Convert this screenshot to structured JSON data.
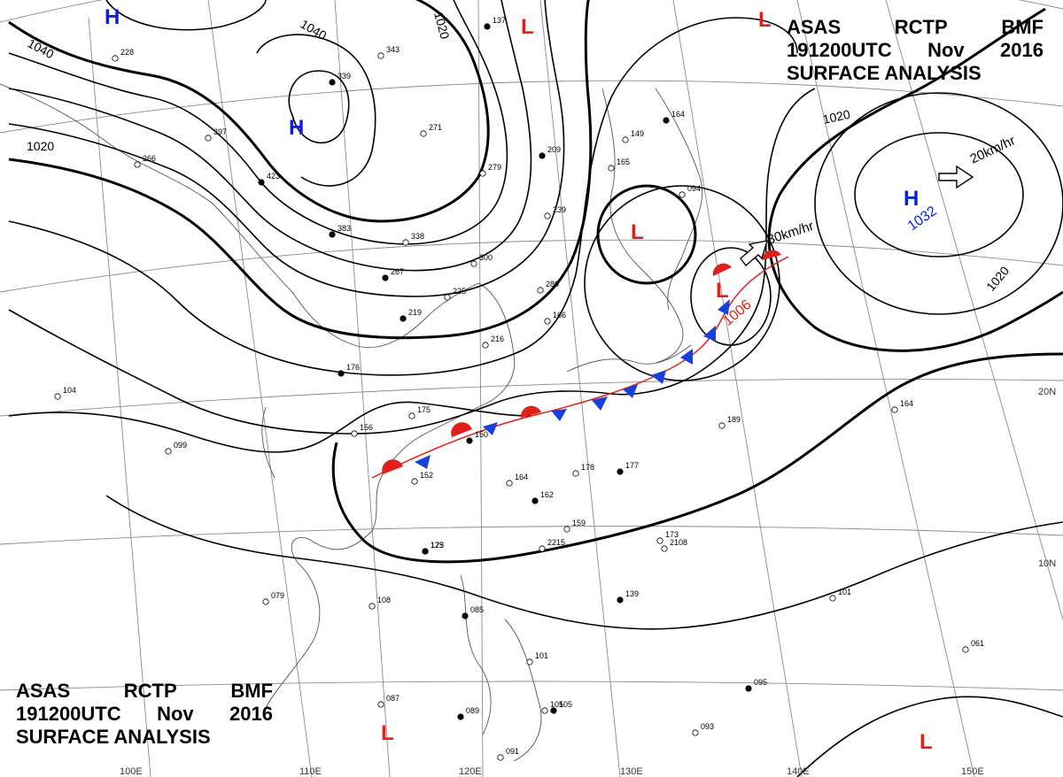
{
  "header": {
    "line1_parts": [
      "ASAS",
      "RCTP",
      "BMF"
    ],
    "line2_parts": [
      "191200UTC",
      "Nov",
      "2016"
    ],
    "line3": "SURFACE ANALYSIS"
  },
  "isobar_labels": [
    "1040",
    "1040",
    "1020",
    "1020",
    "1020",
    "1020"
  ],
  "pressure_centers": [
    {
      "type": "H",
      "value": ""
    },
    {
      "type": "H",
      "value": ""
    },
    {
      "type": "H",
      "value": "1032"
    },
    {
      "type": "L",
      "value": ""
    },
    {
      "type": "L",
      "value": ""
    },
    {
      "type": "L",
      "value": ""
    },
    {
      "type": "L",
      "value": "1006"
    },
    {
      "type": "L",
      "value": ""
    },
    {
      "type": "L",
      "value": ""
    }
  ],
  "motion_labels": [
    "30km/hr",
    "20km/hr"
  ],
  "lat_labels": [
    "20N",
    "10N"
  ],
  "lon_labels": [
    "100E",
    "110E",
    "120E",
    "130E",
    "140E",
    "150E"
  ],
  "station_labels": [
    "137",
    "228",
    "343",
    "339",
    "397",
    "266",
    "423",
    "271",
    "279",
    "209",
    "165",
    "149",
    "164",
    "094",
    "338",
    "383",
    "239",
    "300",
    "267",
    "225",
    "280",
    "219",
    "166",
    "216",
    "176",
    "175",
    "156",
    "150",
    "152",
    "164",
    "162",
    "159",
    "178",
    "177",
    "189",
    "164",
    "105",
    "099",
    "104",
    "123",
    "108",
    "079",
    "085",
    "101",
    "105",
    "095",
    "093",
    "087",
    "089",
    "091",
    "061",
    "139",
    "101",
    "173",
    "175",
    "2215",
    "2108"
  ],
  "colors": {
    "ink": "#000000",
    "high": "#0b1fd6",
    "low": "#e0201a",
    "cold": "#1a3fe0",
    "warm": "#e0201a",
    "grid": "#808080"
  }
}
